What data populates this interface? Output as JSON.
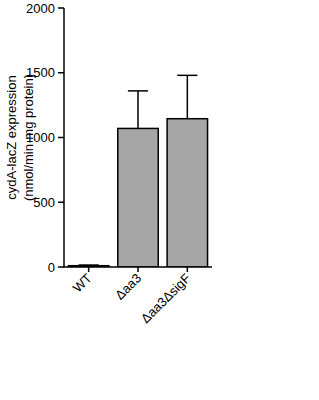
{
  "chart_data": {
    "type": "bar",
    "ylabel": [
      "cydA-lacZ expression",
      "(nmol/min·mg protein)"
    ],
    "categories": [
      "WT",
      "Δaa3",
      "Δaa3ΔsigF"
    ],
    "values": [
      10,
      1070,
      1145
    ],
    "errors": [
      5,
      290,
      335
    ],
    "color": "#a6a6a6",
    "ylim": [
      0,
      2000
    ],
    "yticks": [
      0,
      500,
      1000,
      1500,
      2000
    ],
    "grid": false
  }
}
